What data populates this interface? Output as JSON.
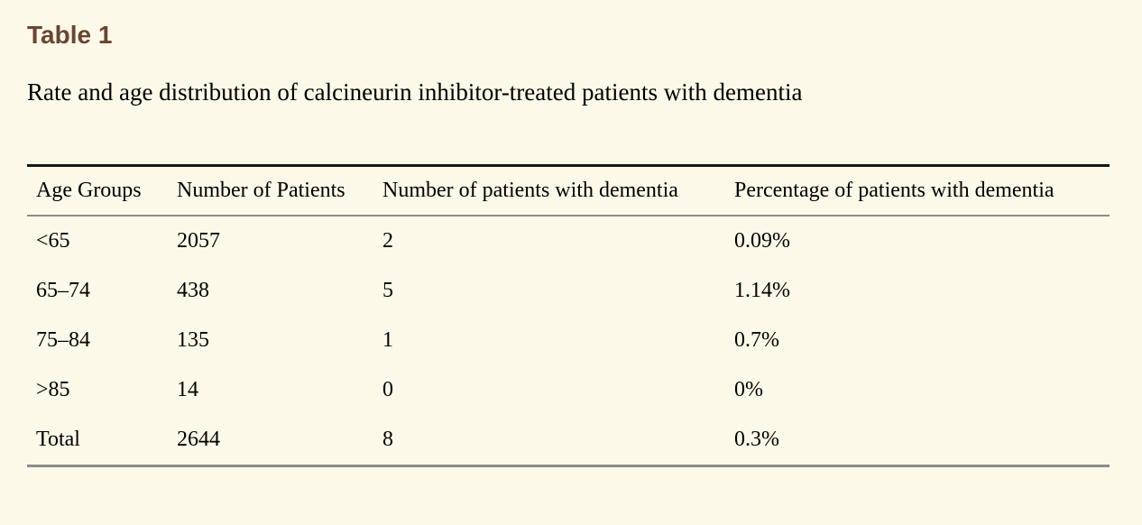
{
  "page": {
    "background_color": "#fdf9e8",
    "accent_color": "#6b4531",
    "rule_colors": {
      "top": "#161616",
      "inner": "#8c8c8c"
    }
  },
  "header": {
    "table_label": "Table 1",
    "caption": "Rate and age distribution of calcineurin inhibitor-treated patients with dementia"
  },
  "chart_data": {
    "type": "table",
    "title": "Rate and age distribution of calcineurin inhibitor-treated patients with dementia",
    "columns": [
      "Age Groups",
      "Number of Patients",
      "Number of patients with dementia",
      "Percentage of patients with dementia"
    ],
    "rows": [
      {
        "cells": [
          "<65",
          "2057",
          "2",
          "0.09%"
        ]
      },
      {
        "cells": [
          "65–74",
          "438",
          "5",
          "1.14%"
        ]
      },
      {
        "cells": [
          "75–84",
          "135",
          "1",
          "0.7%"
        ]
      },
      {
        "cells": [
          ">85",
          "14",
          "0",
          "0%"
        ]
      },
      {
        "cells": [
          "Total",
          "2644",
          "8",
          "0.3%"
        ]
      }
    ]
  }
}
